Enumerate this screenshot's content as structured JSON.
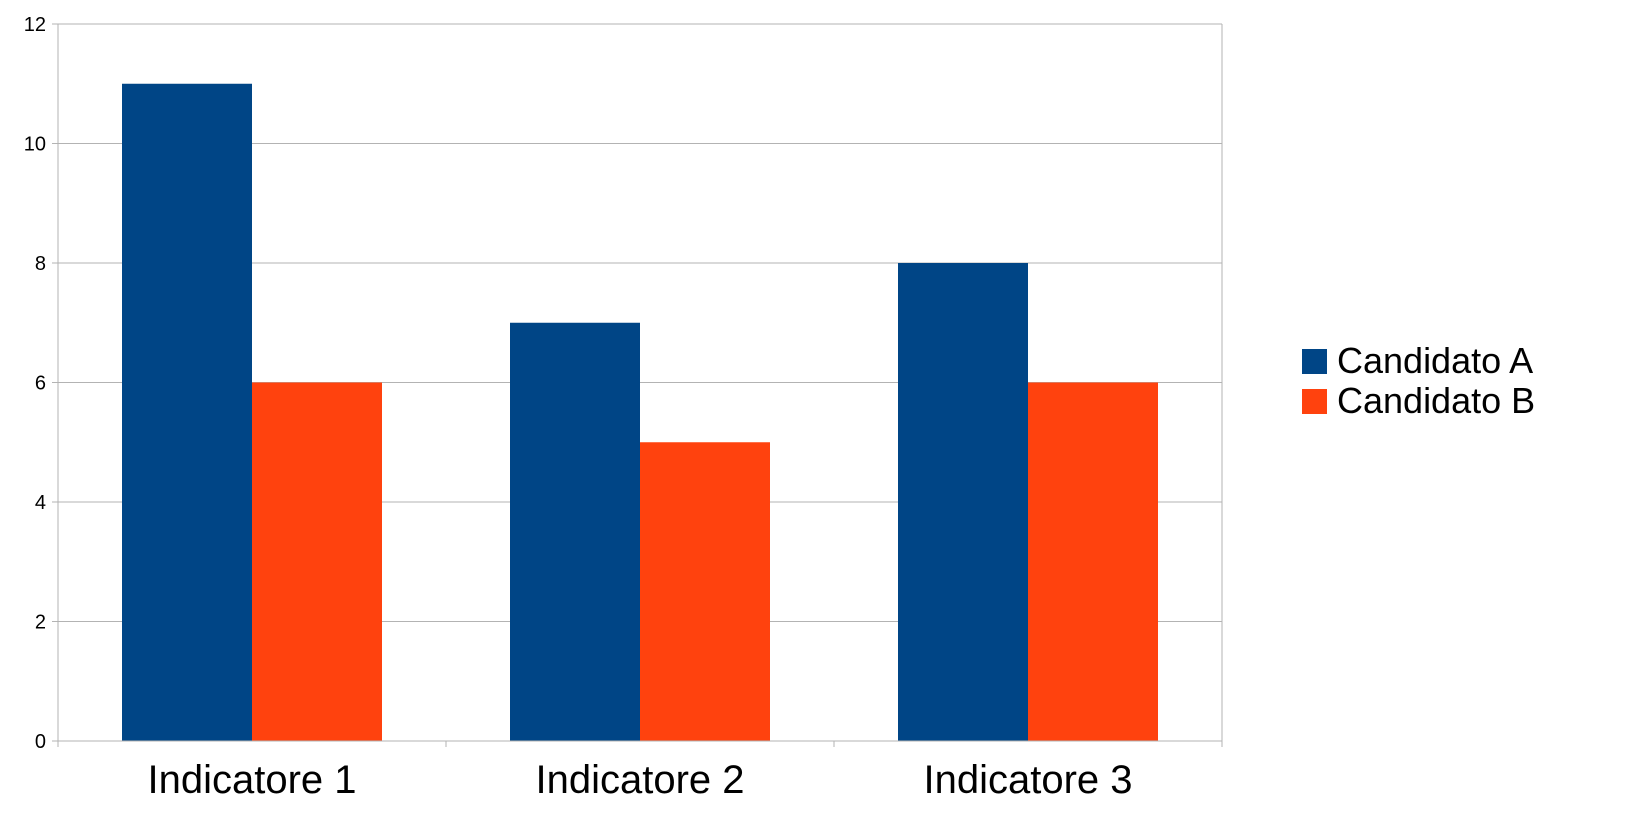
{
  "chart_data": {
    "type": "bar",
    "title": "",
    "xlabel": "",
    "ylabel": "",
    "categories": [
      "Indicatore 1",
      "Indicatore 2",
      "Indicatore 3"
    ],
    "series": [
      {
        "name": "Candidato A",
        "color": "#004586",
        "values": [
          11,
          7,
          8
        ]
      },
      {
        "name": "Candidato B",
        "color": "#ff420e",
        "values": [
          6,
          5,
          6
        ]
      }
    ],
    "ylim": [
      0,
      12
    ],
    "yticks": [
      0,
      2,
      4,
      6,
      8,
      10,
      12
    ],
    "grid": true,
    "legend_position": "right"
  }
}
